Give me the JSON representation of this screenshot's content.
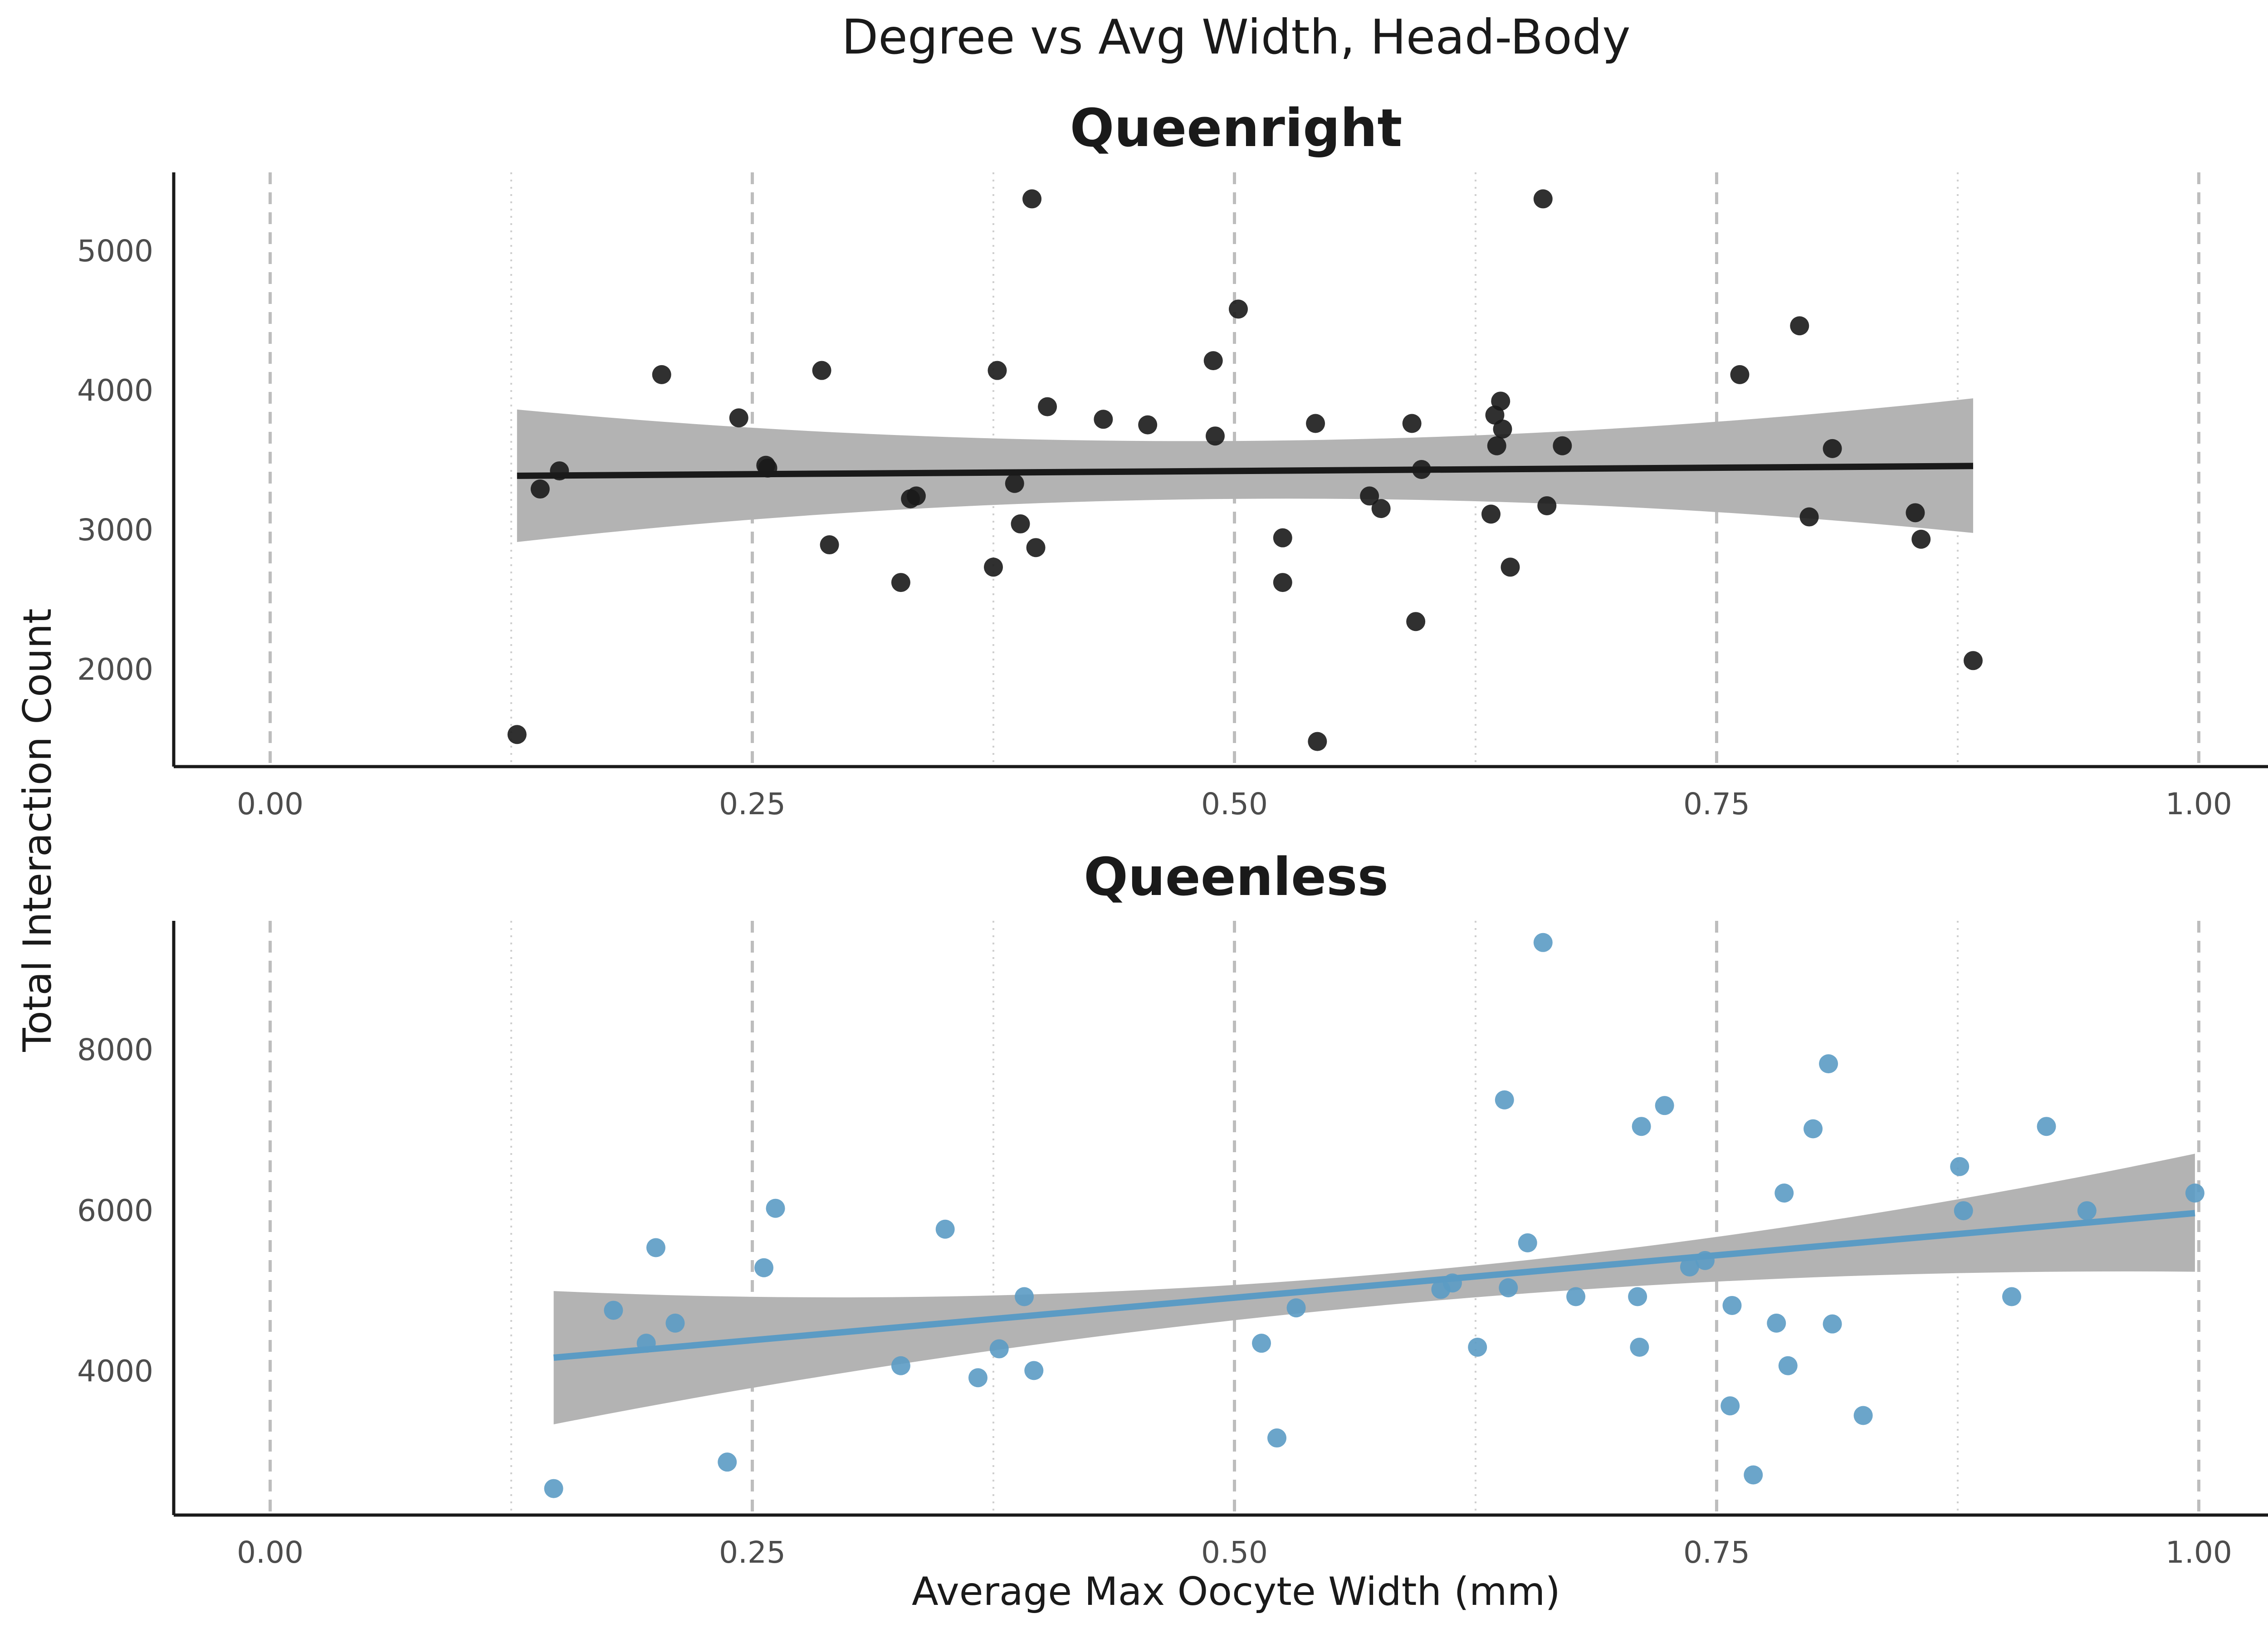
{
  "figure": {
    "title": "Degree vs Avg Width, Head-Body",
    "xlabel": "Average Max Oocyte Width (mm)",
    "ylabel": "Total Interaction Count"
  },
  "chart_data": [
    {
      "type": "scatter",
      "title": "Queenright",
      "xlabel": "Average Max Oocyte Width (mm)",
      "ylabel": "Total Interaction Count",
      "xlim": [
        -0.05,
        1.05
      ],
      "ylim": [
        1300,
        5560
      ],
      "xticks": [
        0.0,
        0.25,
        0.5,
        0.75,
        1.0
      ],
      "xtick_labels": [
        "0.00",
        "0.25",
        "0.50",
        "0.75",
        "1.00"
      ],
      "yticks": [
        2000,
        3000,
        4000,
        5000
      ],
      "ytick_labels": [
        "2000",
        "3000",
        "4000",
        "5000"
      ],
      "grid": "vertical lines only (dashed at 0.25 steps, dotted at 0.125 steps)",
      "color": "#1a1a1a",
      "points": [
        [
          0.128,
          1530
        ],
        [
          0.14,
          3290
        ],
        [
          0.15,
          3420
        ],
        [
          0.203,
          4110
        ],
        [
          0.243,
          3800
        ],
        [
          0.257,
          3460
        ],
        [
          0.258,
          3440
        ],
        [
          0.286,
          4140
        ],
        [
          0.29,
          2890
        ],
        [
          0.327,
          2620
        ],
        [
          0.332,
          3220
        ],
        [
          0.335,
          3240
        ],
        [
          0.375,
          2730
        ],
        [
          0.377,
          4140
        ],
        [
          0.386,
          3330
        ],
        [
          0.389,
          3040
        ],
        [
          0.395,
          5370
        ],
        [
          0.397,
          2870
        ],
        [
          0.403,
          3880
        ],
        [
          0.432,
          3790
        ],
        [
          0.455,
          3750
        ],
        [
          0.489,
          4210
        ],
        [
          0.49,
          3670
        ],
        [
          0.502,
          4580
        ],
        [
          0.525,
          2940
        ],
        [
          0.525,
          2620
        ],
        [
          0.542,
          3760
        ],
        [
          0.543,
          1480
        ],
        [
          0.57,
          3240
        ],
        [
          0.576,
          3150
        ],
        [
          0.592,
          3760
        ],
        [
          0.594,
          2340
        ],
        [
          0.597,
          3430
        ],
        [
          0.633,
          3110
        ],
        [
          0.635,
          3820
        ],
        [
          0.636,
          3600
        ],
        [
          0.638,
          3920
        ],
        [
          0.639,
          3720
        ],
        [
          0.643,
          2730
        ],
        [
          0.66,
          5370
        ],
        [
          0.662,
          3170
        ],
        [
          0.67,
          3600
        ],
        [
          0.762,
          4110
        ],
        [
          0.793,
          4460
        ],
        [
          0.798,
          3090
        ],
        [
          0.81,
          3580
        ],
        [
          0.853,
          3120
        ],
        [
          0.856,
          2930
        ],
        [
          0.883,
          2060
        ]
      ],
      "trend_line": {
        "x": [
          0.128,
          0.883
        ],
        "y": [
          3385,
          3455
        ]
      },
      "confidence_band": {
        "x": [
          0.128,
          0.505,
          0.883
        ],
        "lower": [
          2910,
          3220,
          2975
        ],
        "upper": [
          3860,
          3635,
          3940
        ]
      }
    },
    {
      "type": "scatter",
      "title": "Queenless",
      "xlabel": "Average Max Oocyte Width (mm)",
      "ylabel": "Total Interaction Count",
      "xlim": [
        -0.05,
        1.05
      ],
      "ylim": [
        2200,
        9600
      ],
      "xticks": [
        0.0,
        0.25,
        0.5,
        0.75,
        1.0
      ],
      "xtick_labels": [
        "0.00",
        "0.25",
        "0.50",
        "0.75",
        "1.00"
      ],
      "yticks": [
        4000,
        6000,
        8000
      ],
      "ytick_labels": [
        "4000",
        "6000",
        "8000"
      ],
      "grid": "vertical lines only (dashed at 0.25 steps, dotted at 0.125 steps)",
      "color": "#5b9bc4",
      "points": [
        [
          0.147,
          2530
        ],
        [
          0.178,
          4750
        ],
        [
          0.195,
          4340
        ],
        [
          0.2,
          5530
        ],
        [
          0.21,
          4590
        ],
        [
          0.237,
          2860
        ],
        [
          0.256,
          5280
        ],
        [
          0.262,
          6020
        ],
        [
          0.327,
          4060
        ],
        [
          0.35,
          5760
        ],
        [
          0.367,
          3910
        ],
        [
          0.378,
          4270
        ],
        [
          0.391,
          4920
        ],
        [
          0.396,
          4000
        ],
        [
          0.514,
          4340
        ],
        [
          0.522,
          3160
        ],
        [
          0.532,
          4780
        ],
        [
          0.607,
          5010
        ],
        [
          0.613,
          5090
        ],
        [
          0.626,
          4290
        ],
        [
          0.64,
          7370
        ],
        [
          0.642,
          5030
        ],
        [
          0.652,
          5590
        ],
        [
          0.66,
          9330
        ],
        [
          0.677,
          4920
        ],
        [
          0.709,
          4920
        ],
        [
          0.71,
          4290
        ],
        [
          0.711,
          7040
        ],
        [
          0.723,
          7300
        ],
        [
          0.736,
          5290
        ],
        [
          0.744,
          5370
        ],
        [
          0.757,
          3560
        ],
        [
          0.758,
          4810
        ],
        [
          0.769,
          2700
        ],
        [
          0.781,
          4590
        ],
        [
          0.785,
          6210
        ],
        [
          0.787,
          4060
        ],
        [
          0.8,
          7010
        ],
        [
          0.808,
          7820
        ],
        [
          0.81,
          4580
        ],
        [
          0.826,
          3440
        ],
        [
          0.876,
          6540
        ],
        [
          0.878,
          5990
        ],
        [
          0.903,
          4920
        ],
        [
          0.921,
          7040
        ],
        [
          0.942,
          5990
        ],
        [
          0.998,
          6210
        ]
      ],
      "trend_line": {
        "x": [
          0.147,
          0.998
        ],
        "y": [
          4160,
          5960
        ]
      },
      "confidence_band": {
        "x": [
          0.147,
          0.57,
          0.998
        ],
        "lower": [
          3330,
          4800,
          5230
        ],
        "upper": [
          4990,
          5190,
          6700
        ]
      }
    }
  ]
}
